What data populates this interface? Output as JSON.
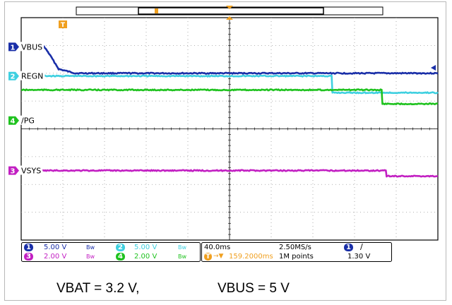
{
  "caption": {
    "vbat": "VBAT = 3.2 V,",
    "vbus": "VBUS = 5 V"
  },
  "colors": {
    "ch1": "#1a2fa8",
    "ch2": "#3fd0e0",
    "ch3": "#c21fc2",
    "ch4": "#1fc21f",
    "trigger": "#f0a020",
    "grid": "#9a9a9a"
  },
  "channel_labels": {
    "ch1": "VBUS",
    "ch2": "REGN",
    "ch3": "VSYS",
    "ch4": "/PG"
  },
  "marker_numbers": {
    "ch1": "1",
    "ch2": "2",
    "ch3": "3",
    "ch4": "4"
  },
  "trigger_marker": "T",
  "info_panel": {
    "channels": [
      {
        "number": "1",
        "scale": "5.00 V",
        "bw": "Bw"
      },
      {
        "number": "2",
        "scale": "5.00 V",
        "bw": "Bw"
      },
      {
        "number": "3",
        "scale": "2.00 V",
        "bw": "Bw"
      },
      {
        "number": "4",
        "scale": "2.00 V",
        "bw": "Bw"
      }
    ],
    "timebase": "40.0ms",
    "trigger_delay": "159.2000ms",
    "sample_rate": "2.50MS/s",
    "record_length": "1M points",
    "trigger_source": "1",
    "trigger_slope": "∕",
    "trigger_level": "1.30 V"
  },
  "chart_data": {
    "type": "line",
    "title": "",
    "xlabel": "",
    "ylabel": "",
    "grid": true,
    "divisions": {
      "x": 10,
      "y": 8
    },
    "time_per_div": "40.0ms",
    "series": [
      {
        "name": "VBUS",
        "channel": 1,
        "volts_per_div": "5.00 V",
        "points": [
          [
            0.0,
            1.05
          ],
          [
            0.55,
            1.05
          ],
          [
            0.65,
            1.25
          ],
          [
            0.9,
            1.85
          ],
          [
            1.3,
            2.0
          ],
          [
            10.0,
            2.0
          ]
        ]
      },
      {
        "name": "REGN",
        "channel": 2,
        "volts_per_div": "5.00 V",
        "points": [
          [
            0.0,
            2.1
          ],
          [
            7.45,
            2.1
          ],
          [
            7.47,
            2.7
          ],
          [
            10.0,
            2.7
          ]
        ]
      },
      {
        "name": "VSYS",
        "channel": 3,
        "volts_per_div": "2.00 V",
        "points": [
          [
            0.0,
            5.5
          ],
          [
            8.75,
            5.5
          ],
          [
            8.77,
            5.7
          ],
          [
            10.0,
            5.7
          ]
        ]
      },
      {
        "name": "/PG",
        "channel": 4,
        "volts_per_div": "2.00 V",
        "points": [
          [
            0.0,
            2.6
          ],
          [
            8.65,
            2.6
          ],
          [
            8.67,
            3.1
          ],
          [
            10.0,
            3.1
          ]
        ]
      }
    ]
  }
}
